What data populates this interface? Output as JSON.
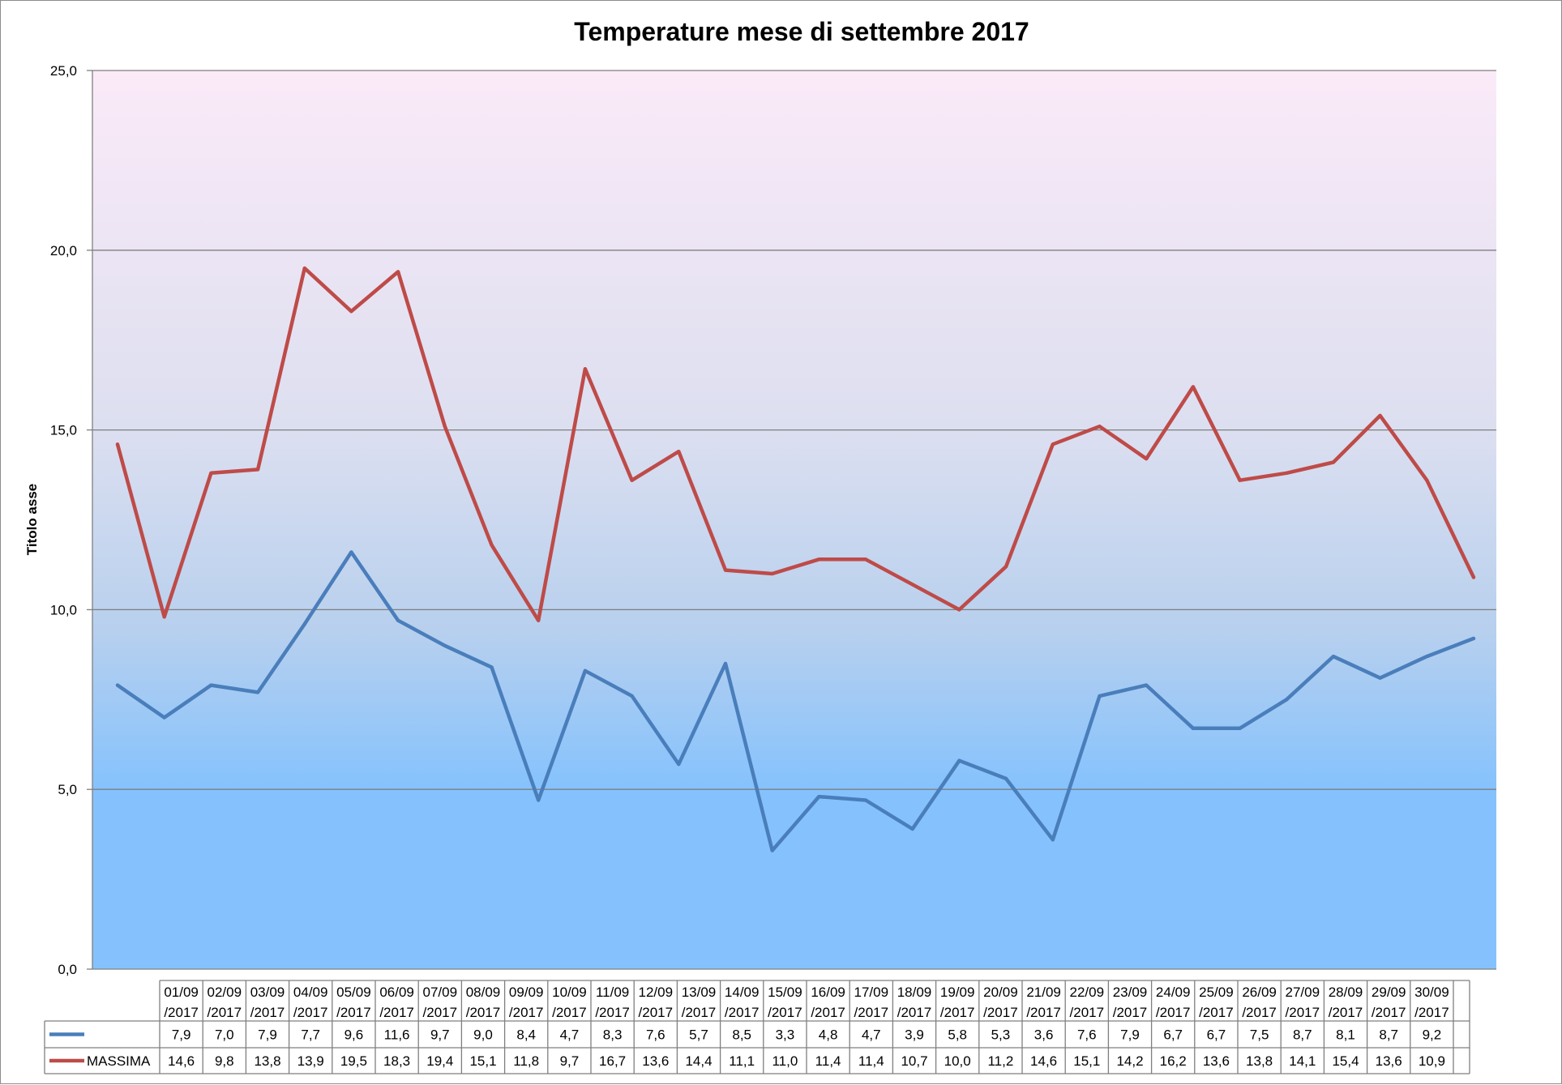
{
  "chart_data": {
    "type": "line",
    "title": "Temperature mese di settembre 2017",
    "ylabel": "Titolo asse",
    "xlabel": "",
    "ylim": [
      0,
      25
    ],
    "yticks": [
      "0,0",
      "5,0",
      "10,0",
      "15,0",
      "20,0",
      "25,0"
    ],
    "grid": true,
    "legend": "data-table",
    "categories": [
      "01/09/2017",
      "02/09/2017",
      "03/09/2017",
      "04/09/2017",
      "05/09/2017",
      "06/09/2017",
      "07/09/2017",
      "08/09/2017",
      "09/09/2017",
      "10/09/2017",
      "11/09/2017",
      "12/09/2017",
      "13/09/2017",
      "14/09/2017",
      "15/09/2017",
      "16/09/2017",
      "17/09/2017",
      "18/09/2017",
      "19/09/2017",
      "20/09/2017",
      "21/09/2017",
      "22/09/2017",
      "23/09/2017",
      "24/09/2017",
      "25/09/2017",
      "26/09/2017",
      "27/09/2017",
      "28/09/2017",
      "29/09/2017",
      "30/09/2017"
    ],
    "series": [
      {
        "name": "",
        "color": "#4a7ebb",
        "values": [
          7.9,
          7.0,
          7.9,
          7.7,
          9.6,
          11.6,
          9.7,
          9.0,
          8.4,
          4.7,
          8.3,
          7.6,
          5.7,
          8.5,
          3.3,
          4.8,
          4.7,
          3.9,
          5.8,
          5.3,
          3.6,
          7.6,
          7.9,
          6.7,
          6.7,
          7.5,
          8.7,
          8.1,
          8.7,
          9.2
        ],
        "labels": [
          "7,9",
          "7,0",
          "7,9",
          "7,7",
          "9,6",
          "11,6",
          "9,7",
          "9,0",
          "8,4",
          "4,7",
          "8,3",
          "7,6",
          "5,7",
          "8,5",
          "3,3",
          "4,8",
          "4,7",
          "3,9",
          "5,8",
          "5,3",
          "3,6",
          "7,6",
          "7,9",
          "6,7",
          "6,7",
          "7,5",
          "8,7",
          "8,1",
          "8,7",
          "9,2"
        ]
      },
      {
        "name": "MASSIMA",
        "color": "#be4b48",
        "values": [
          14.6,
          9.8,
          13.8,
          13.9,
          19.5,
          18.3,
          19.4,
          15.1,
          11.8,
          9.7,
          16.7,
          13.6,
          14.4,
          11.1,
          11.0,
          11.4,
          11.4,
          10.7,
          10.0,
          11.2,
          14.6,
          15.1,
          14.2,
          16.2,
          13.6,
          13.8,
          14.1,
          15.4,
          13.6,
          10.9
        ],
        "labels": [
          "14,6",
          "9,8",
          "13,8",
          "13,9",
          "19,5",
          "18,3",
          "19,4",
          "15,1",
          "11,8",
          "9,7",
          "16,7",
          "13,6",
          "14,4",
          "11,1",
          "11,0",
          "11,4",
          "11,4",
          "10,7",
          "10,0",
          "11,2",
          "14,6",
          "15,1",
          "14,2",
          "16,2",
          "13,6",
          "13,8",
          "14,1",
          "15,4",
          "13,6",
          "10,9"
        ]
      }
    ]
  }
}
